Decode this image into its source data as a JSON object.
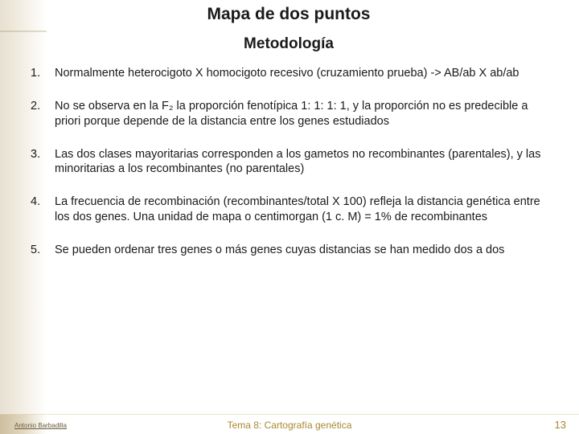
{
  "title": "Mapa de dos puntos",
  "subtitle": "Metodología",
  "items": [
    {
      "num": "1.",
      "text": "Normalmente heterocigoto X homocigoto recesivo (cruzamiento prueba) -> AB/ab X ab/ab"
    },
    {
      "num": "2.",
      "text": " No se observa en la F₂ la proporción fenotípica 1: 1: 1: 1, y la proporción no es predecible a priori porque depende de la distancia entre los genes estudiados"
    },
    {
      "num": "3.",
      "text": " Las dos clases mayoritarias corresponden a los gametos no recombinantes (parentales), y las minoritarias a los recombinantes (no parentales)"
    },
    {
      "num": "4.",
      "text": " La frecuencia de recombinación (recombinantes/total X 100) refleja la distancia genética entre los dos genes. Una unidad de mapa o centimorgan (1 c. M) = 1% de recombinantes"
    },
    {
      "num": "5.",
      "text": " Se pueden ordenar tres genes o más genes cuyas distancias se han medido dos a dos"
    }
  ],
  "footer": {
    "author": "Antonio Barbadilla",
    "topic": "Tema 8: Cartografía genética",
    "page": "13"
  },
  "colors": {
    "text": "#1a1a1a",
    "accent": "#a88830",
    "bg_band_start": "#bca77f",
    "bg_band_end": "#ffffff"
  }
}
